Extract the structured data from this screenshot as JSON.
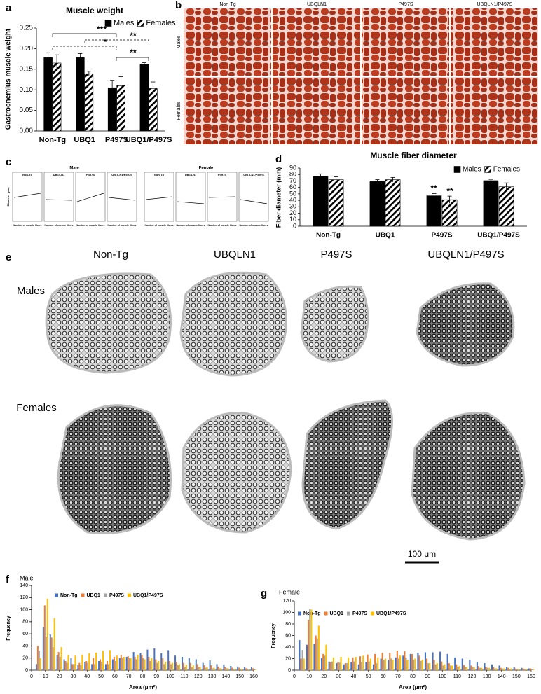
{
  "panel_labels": [
    "a",
    "b",
    "c",
    "d",
    "e",
    "f",
    "g"
  ],
  "chart_data": [
    {
      "type": "bar",
      "title": "Muscle weight",
      "y_label": "Gastrocnemius muscle weight",
      "categories": [
        "Non-Tg",
        "UBQ1",
        "P497S",
        "UBQ1/P497S"
      ],
      "series": [
        {
          "name": "Males",
          "color": "#000000",
          "pattern": "solid",
          "values": [
            0.178,
            0.178,
            0.105,
            0.162
          ],
          "errors": [
            0.012,
            0.01,
            0.018,
            0.004
          ]
        },
        {
          "name": "Females",
          "color": "#000000",
          "pattern": "hatch",
          "values": [
            0.165,
            0.139,
            0.11,
            0.103
          ],
          "errors": [
            0.02,
            0.006,
            0.022,
            0.016
          ]
        }
      ],
      "ylim": [
        0,
        0.25
      ],
      "yticks": [
        {
          "value": 0,
          "label": "0.00"
        },
        {
          "value": 0.05,
          "label": "0.05"
        },
        {
          "value": 0.1,
          "label": "0.10"
        },
        {
          "value": 0.15,
          "label": "0.15"
        },
        {
          "value": 0.2,
          "label": "0.20"
        },
        {
          "value": 0.25,
          "label": "0.25"
        }
      ],
      "annotations": [
        "***",
        "**",
        "*",
        "**"
      ]
    },
    {
      "type": "bar",
      "title": "Muscle fiber diameter",
      "y_label": "Fiber diameter (mm)",
      "categories": [
        "Non-Tg",
        "UBQ1",
        "P497S",
        "UBQ1/P497S"
      ],
      "series": [
        {
          "name": "Males",
          "color": "#000000",
          "pattern": "solid",
          "values": [
            77,
            69,
            47,
            70.5
          ],
          "errors": [
            4,
            3,
            3.5,
            2
          ]
        },
        {
          "name": "Females",
          "color": "#000000",
          "pattern": "hatch",
          "values": [
            72,
            72,
            41,
            61
          ],
          "errors": [
            4.5,
            3.5,
            5.5,
            6
          ]
        }
      ],
      "ylim": [
        0,
        90
      ],
      "yticks": [
        0,
        10,
        20,
        30,
        40,
        50,
        60,
        70,
        80,
        90
      ],
      "annotations": [
        "**",
        "**"
      ]
    },
    {
      "type": "bar",
      "subtitle": "Male",
      "x_label": "Area (μm²)",
      "y_label": "Frequency",
      "x": [
        5,
        10,
        15,
        20,
        25,
        30,
        35,
        40,
        45,
        50,
        55,
        60,
        65,
        70,
        75,
        80,
        85,
        90,
        95,
        100,
        105,
        110,
        115,
        120,
        125,
        130,
        135,
        140,
        145,
        150,
        155,
        160
      ],
      "series": [
        {
          "name": "Non-Tg",
          "color": "#4472c4",
          "values": [
            10,
            71,
            59,
            25,
            18,
            20,
            8,
            14,
            10,
            15,
            10,
            18,
            20,
            22,
            30,
            28,
            34,
            36,
            28,
            33,
            24,
            22,
            20,
            18,
            12,
            16,
            10,
            9,
            7,
            6,
            5,
            5
          ]
        },
        {
          "name": "UBQ1",
          "color": "#ed7d31",
          "values": [
            40,
            107,
            54,
            30,
            15,
            10,
            12,
            15,
            20,
            18,
            15,
            22,
            25,
            23,
            22,
            25,
            22,
            18,
            20,
            15,
            14,
            12,
            12,
            10,
            8,
            8,
            6,
            5,
            4,
            4,
            3,
            3
          ]
        },
        {
          "name": "P497S",
          "color": "#a5a5a5",
          "values": [
            32,
            55,
            38,
            22,
            12,
            10,
            8,
            12,
            10,
            14,
            10,
            15,
            20,
            20,
            18,
            20,
            15,
            12,
            10,
            10,
            8,
            6,
            5,
            5,
            4,
            3,
            3,
            3,
            2,
            2,
            2,
            2
          ]
        },
        {
          "name": "UBQ1/P497S",
          "color": "#ffc000",
          "values": [
            20,
            118,
            86,
            38,
            25,
            24,
            25,
            28,
            29,
            32,
            33,
            24,
            22,
            20,
            25,
            18,
            20,
            15,
            14,
            12,
            10,
            9,
            8,
            6,
            5,
            4,
            3,
            3,
            2,
            2,
            1,
            1
          ]
        }
      ],
      "xlim": [
        0,
        160
      ],
      "xticks": [
        0,
        10,
        20,
        30,
        40,
        50,
        60,
        70,
        80,
        90,
        100,
        110,
        120,
        130,
        140,
        150,
        160
      ],
      "ylim": [
        0,
        140
      ],
      "yticks": [
        0,
        20,
        40,
        60,
        80,
        100,
        120,
        140
      ]
    },
    {
      "type": "bar",
      "subtitle": "Female",
      "x_label": "Area (μm²)",
      "y_label": "Frequency",
      "x": [
        5,
        10,
        15,
        20,
        25,
        30,
        35,
        40,
        45,
        50,
        55,
        60,
        65,
        70,
        75,
        80,
        85,
        90,
        95,
        100,
        105,
        110,
        115,
        120,
        125,
        130,
        135,
        140,
        145,
        150,
        155,
        160
      ],
      "series": [
        {
          "name": "Non-Tg",
          "color": "#4472c4",
          "values": [
            52,
            44,
            45,
            21,
            15,
            12,
            10,
            14,
            10,
            14,
            10,
            20,
            18,
            22,
            25,
            28,
            30,
            31,
            31,
            32,
            28,
            22,
            20,
            18,
            14,
            12,
            10,
            8,
            6,
            5,
            4,
            3
          ]
        },
        {
          "name": "UBQ1",
          "color": "#ed7d31",
          "values": [
            20,
            87,
            60,
            28,
            14,
            14,
            12,
            22,
            24,
            27,
            28,
            30,
            30,
            34,
            33,
            28,
            25,
            20,
            18,
            15,
            12,
            10,
            9,
            8,
            7,
            6,
            5,
            4,
            4,
            3,
            3,
            3
          ]
        },
        {
          "name": "P497S",
          "color": "#a5a5a5",
          "values": [
            35,
            106,
            55,
            25,
            15,
            13,
            12,
            15,
            14,
            15,
            12,
            18,
            20,
            20,
            22,
            18,
            16,
            12,
            10,
            8,
            8,
            6,
            5,
            5,
            4,
            4,
            3,
            3,
            2,
            2,
            2,
            2
          ]
        },
        {
          "name": "UBQ1/P497S",
          "color": "#ffc000",
          "values": [
            20,
            105,
            77,
            44,
            22,
            23,
            22,
            23,
            25,
            20,
            22,
            20,
            18,
            25,
            18,
            20,
            18,
            12,
            12,
            10,
            8,
            7,
            6,
            5,
            4,
            4,
            3,
            3,
            3,
            2,
            2,
            2
          ]
        }
      ],
      "xlim": [
        0,
        160
      ],
      "xticks": [
        0,
        10,
        20,
        30,
        40,
        50,
        60,
        70,
        80,
        90,
        100,
        110,
        120,
        130,
        140,
        150,
        160
      ],
      "ylim": [
        0,
        120
      ],
      "yticks": [
        0,
        20,
        40,
        60,
        80,
        100,
        120
      ]
    }
  ],
  "micrographs_b": {
    "columns": [
      "Non-Tg",
      "UBQLN1",
      "P497S",
      "UBQLN1/P497S"
    ],
    "rows": [
      "Males",
      "Females"
    ]
  },
  "scatter_c": {
    "groups": [
      "Male",
      "Female"
    ],
    "plots": [
      "Non-Tg",
      "UBQLN1",
      "P497S",
      "UBQLN1/P497S"
    ],
    "y_label": "Diameter (μm)",
    "x_label": "Number of muscle fibers"
  },
  "sections_e": {
    "columns": [
      "Non-Tg",
      "UBQLN1",
      "P497S",
      "UBQLN1/P497S"
    ],
    "rows": [
      "Males",
      "Females"
    ],
    "scale_bar": "100 μm"
  }
}
